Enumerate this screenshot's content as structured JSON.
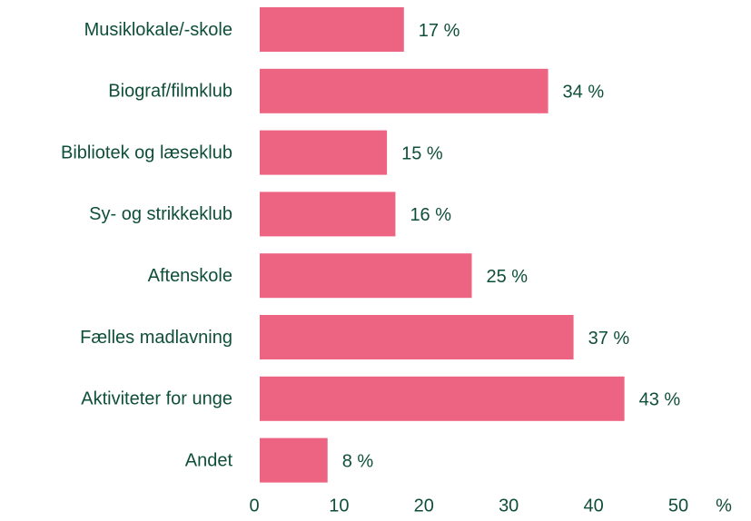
{
  "chart_data": {
    "type": "barh",
    "categories": [
      "Musiklokale/-skole",
      "Biograf/filmklub",
      "Bibliotek og læseklub",
      "Sy- og strikkeklub",
      "Aftenskole",
      "Fælles madlavning",
      "Aktiviteter for unge",
      "Andet"
    ],
    "values": [
      17,
      34,
      15,
      16,
      25,
      37,
      43,
      8
    ],
    "value_labels": [
      "17 %",
      "34 %",
      "15 %",
      "16 %",
      "25 %",
      "37 %",
      "43 %",
      "8 %"
    ],
    "color": "#ec6482",
    "xlabel": "%",
    "xlim": [
      0,
      50
    ],
    "xticks": [
      0,
      10,
      20,
      30,
      40,
      50
    ],
    "grid": false
  }
}
